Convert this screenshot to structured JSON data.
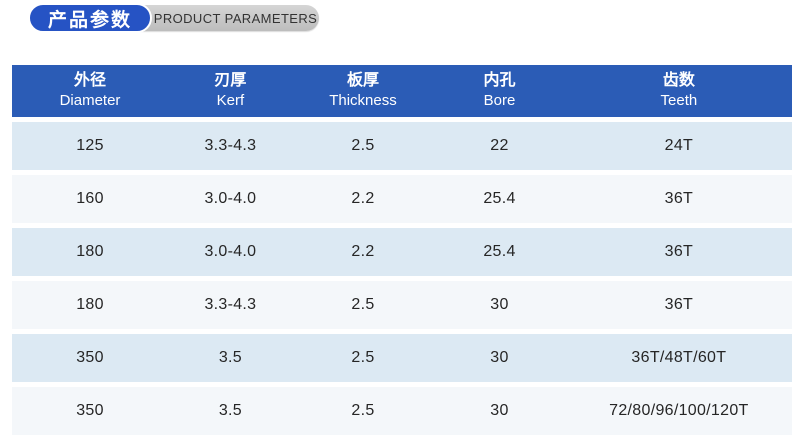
{
  "title": {
    "zh": "产品参数",
    "en": "PRODUCT PARAMETERS"
  },
  "colors": {
    "header_bg": "#2b5cb6",
    "pill_blue": "#2653c4",
    "row_light": "#f4f7fa",
    "row_blue": "#dce9f3"
  },
  "table": {
    "columns": [
      {
        "zh": "外径",
        "en": "Diameter"
      },
      {
        "zh": "刃厚",
        "en": "Kerf"
      },
      {
        "zh": "板厚",
        "en": "Thickness"
      },
      {
        "zh": "内孔",
        "en": "Bore"
      },
      {
        "zh": "齿数",
        "en": "Teeth"
      }
    ],
    "rows": [
      [
        "125",
        "3.3-4.3",
        "2.5",
        "22",
        "24T"
      ],
      [
        "160",
        "3.0-4.0",
        "2.2",
        "25.4",
        "36T"
      ],
      [
        "180",
        "3.0-4.0",
        "2.2",
        "25.4",
        "36T"
      ],
      [
        "180",
        "3.3-4.3",
        "2.5",
        "30",
        "36T"
      ],
      [
        "350",
        "3.5",
        "2.5",
        "30",
        "36T/48T/60T"
      ],
      [
        "350",
        "3.5",
        "2.5",
        "30",
        "72/80/96/100/120T"
      ]
    ]
  }
}
